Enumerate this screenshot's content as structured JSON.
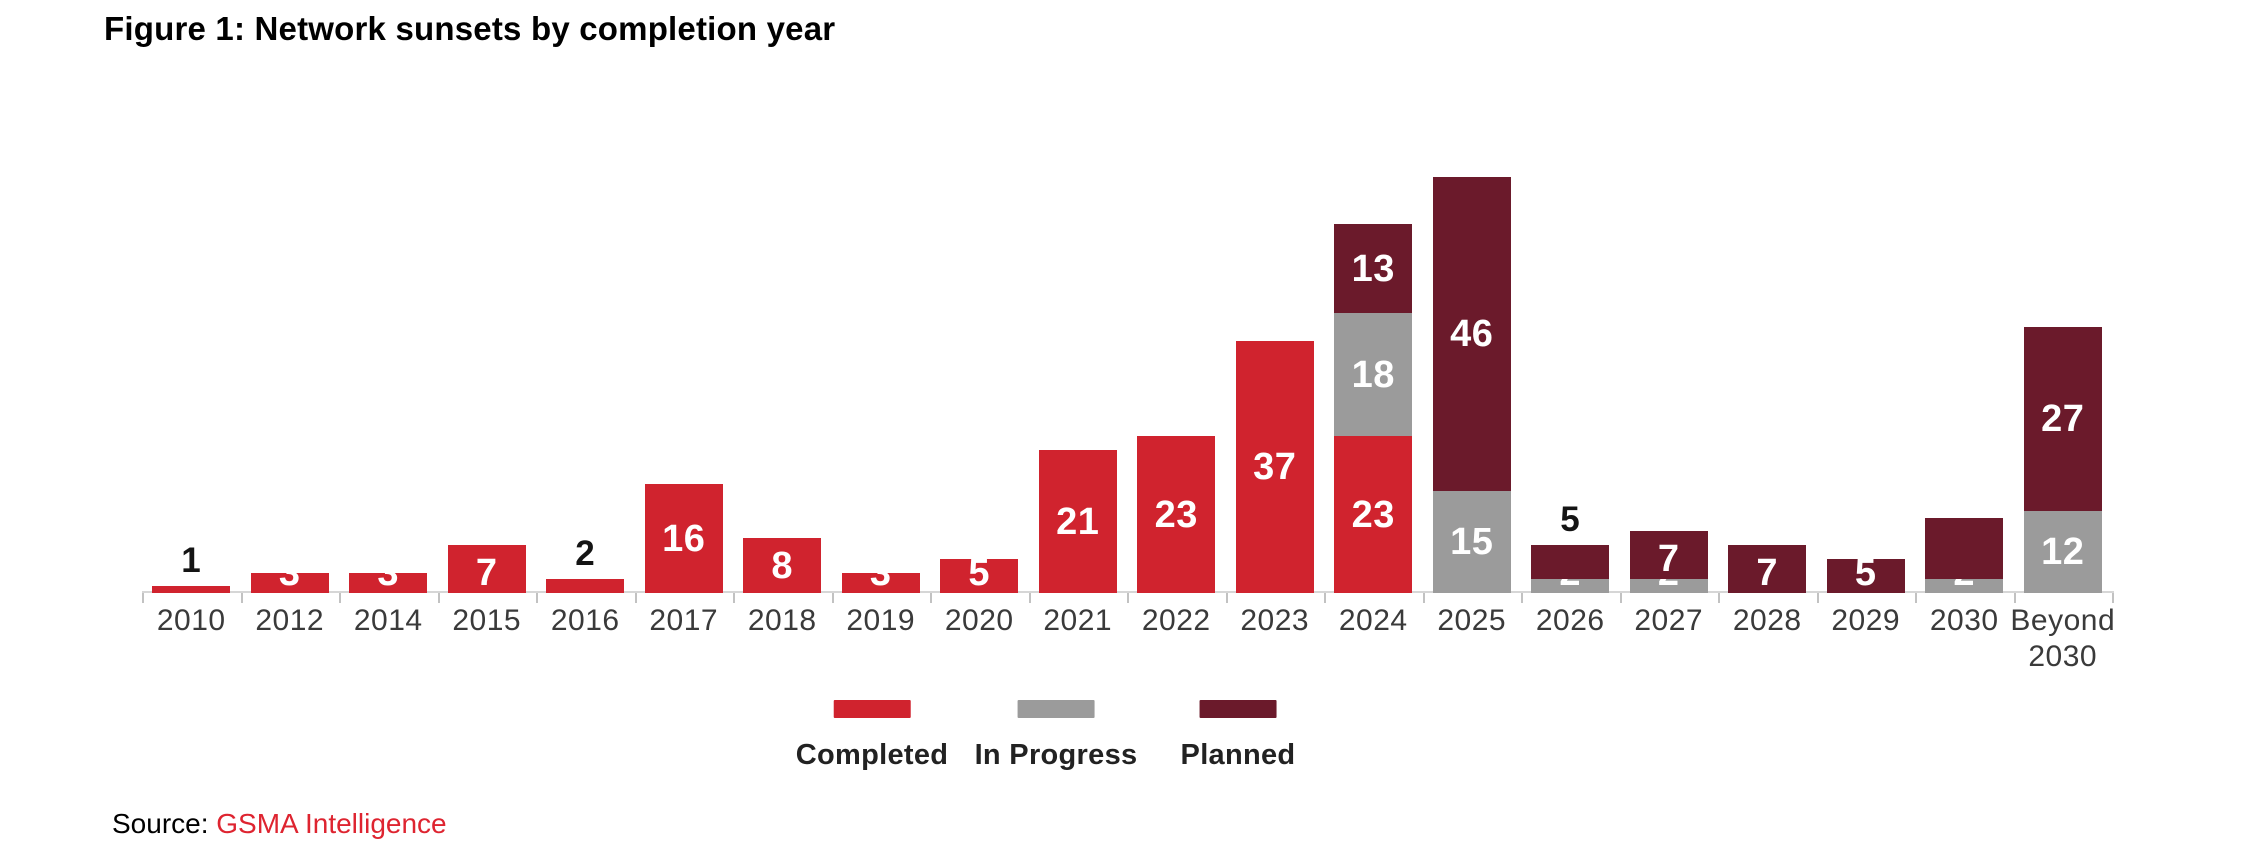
{
  "title": "Figure 1: Network sunsets by completion year",
  "source": {
    "prefix": "Source:",
    "name": "GSMA Intelligence"
  },
  "colors": {
    "completed": "#d0232e",
    "in_progress": "#9b9b9b",
    "planned": "#6b1a2b",
    "source_link": "#de2430",
    "axis_line": "#d6d6d6"
  },
  "chart_data": {
    "type": "bar",
    "stacked": true,
    "title": "Figure 1: Network sunsets by completion year",
    "xlabel": "",
    "ylabel": "",
    "ylim": [
      0,
      61
    ],
    "grid": false,
    "legend_position": "bottom",
    "value_labels": true,
    "categories": [
      "2010",
      "2012",
      "2014",
      "2015",
      "2016",
      "2017",
      "2018",
      "2019",
      "2020",
      "2021",
      "2022",
      "2023",
      "2024",
      "2025",
      "2026",
      "2027",
      "2028",
      "2029",
      "2030",
      "Beyond 2030"
    ],
    "series": [
      {
        "name": "Completed",
        "color": "#d0232e",
        "values": [
          1,
          3,
          3,
          7,
          2,
          16,
          8,
          3,
          5,
          21,
          23,
          37,
          23,
          0,
          0,
          0,
          0,
          0,
          0,
          0
        ]
      },
      {
        "name": "In Progress",
        "color": "#9b9b9b",
        "values": [
          0,
          0,
          0,
          0,
          0,
          0,
          0,
          0,
          0,
          0,
          0,
          0,
          18,
          15,
          2,
          2,
          0,
          0,
          2,
          12
        ]
      },
      {
        "name": "Planned",
        "color": "#6b1a2b",
        "values": [
          0,
          0,
          0,
          0,
          0,
          0,
          0,
          0,
          0,
          0,
          0,
          0,
          13,
          46,
          5,
          7,
          7,
          5,
          9,
          27
        ]
      }
    ],
    "label_overrides": [
      {
        "category": "2010",
        "series": "Completed",
        "position": "above"
      },
      {
        "category": "2016",
        "series": "Completed",
        "position": "above"
      },
      {
        "category": "2026",
        "series": "Planned",
        "position": "above"
      },
      {
        "category": "2030",
        "series": "Planned",
        "position": "hidden"
      }
    ]
  }
}
